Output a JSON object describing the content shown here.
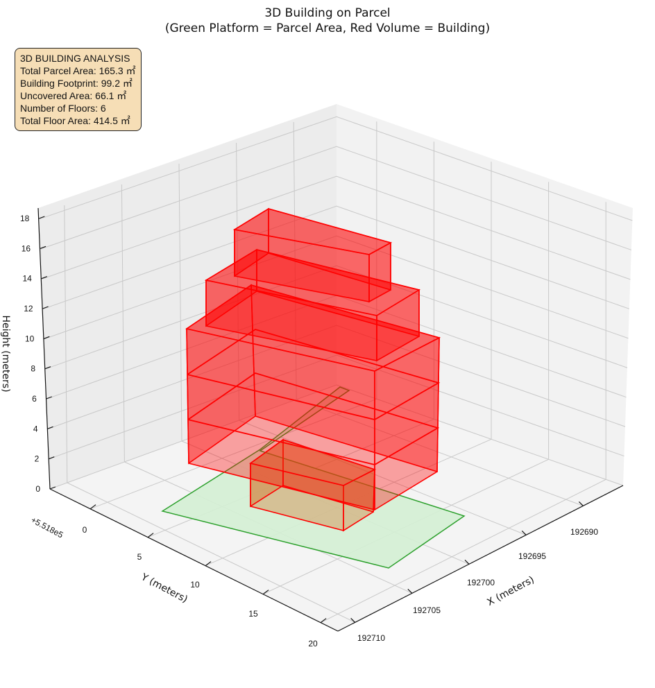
{
  "chart_data": {
    "type": "3d-bar",
    "title": "3D Building on Parcel",
    "subtitle": "(Green Platform = Parcel Area, Red Volume = Building)",
    "xlabel": "X (meters)",
    "ylabel": "Y (meters)",
    "zlabel": "Height (meters)",
    "x_ticks": [
      "192690",
      "192695",
      "192700",
      "192705",
      "192710"
    ],
    "y_ticks": [
      "0",
      "5",
      "10",
      "15",
      "20"
    ],
    "y_offset": "+5.518e5",
    "z_ticks": [
      "0",
      "2",
      "4",
      "6",
      "8",
      "10",
      "12",
      "14",
      "16",
      "18"
    ],
    "zlim": [
      0,
      18
    ],
    "colors": {
      "parcel": "#2ca02c",
      "building": "#ff0000"
    },
    "info": {
      "heading": "3D BUILDING ANALYSIS",
      "lines": [
        "Total Parcel Area: 165.3 ㎡",
        "Building Footprint: 99.2 ㎡",
        "Uncovered Area: 66.1 ㎡",
        "Number of Floors: 6",
        "Total Floor Area: 414.5 ㎡"
      ]
    },
    "stats": {
      "parcel_area": 165.3,
      "footprint": 99.2,
      "uncovered": 66.1,
      "floors": 6,
      "floor_area": 414.5
    }
  }
}
